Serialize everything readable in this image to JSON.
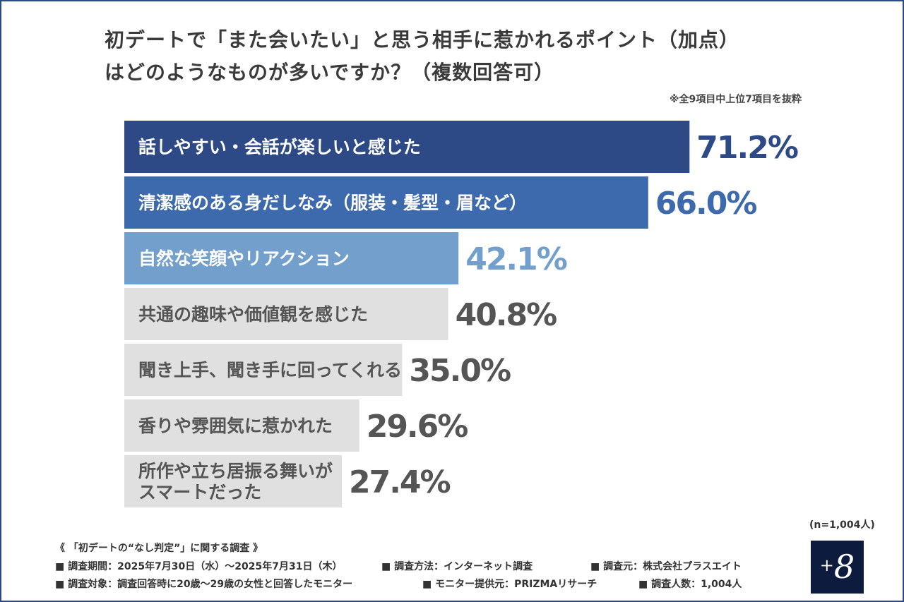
{
  "title": {
    "line1": "初デートで「また会いたい」と思う相手に惹かれるポイント（加点）",
    "line2": "はどのようなものが多いですか？（複数回答可）"
  },
  "note": "※全9項目中上位7項目を抜粋",
  "chart_data": {
    "type": "bar",
    "orientation": "horizontal",
    "categories": [
      "話しやすい・会話が楽しいと感じた",
      "清潔感のある身だしなみ（服装・髪型・眉など）",
      "自然な笑顔やリアクション",
      "共通の趣味や価値観を感じた",
      "聞き上手、聞き手に回ってくれる",
      "香りや雰囲気に惹かれた",
      "所作や立ち居振る舞いがスマートだった"
    ],
    "category_lines": [
      [
        "話しやすい・会話が楽しいと感じた"
      ],
      [
        "清潔感のある身だしなみ（服装・髪型・眉など）"
      ],
      [
        "自然な笑顔やリアクション"
      ],
      [
        "共通の趣味や価値観を感じた"
      ],
      [
        "聞き上手、聞き手に回ってくれる"
      ],
      [
        "香りや雰囲気に惹かれた"
      ],
      [
        "所作や立ち居振る舞いが",
        "スマートだった"
      ]
    ],
    "values": [
      71.2,
      66.0,
      42.1,
      40.8,
      35.0,
      29.6,
      27.4
    ],
    "value_labels": [
      "71.2%",
      "66.0%",
      "42.1%",
      "40.8%",
      "35.0%",
      "29.6%",
      "27.4%"
    ],
    "unit": "%",
    "bar_colors": [
      "#2d4a86",
      "#3d6aac",
      "#729fcb",
      "#e0e0e0",
      "#e0e0e0",
      "#e0e0e0",
      "#e0e0e0"
    ],
    "label_colors": [
      "#ffffff",
      "#ffffff",
      "#ffffff",
      "#555555",
      "#555555",
      "#555555",
      "#555555"
    ],
    "value_colors": [
      "#2d4a86",
      "#3d6aac",
      "#729fcb",
      "#555555",
      "#555555",
      "#555555",
      "#555555"
    ]
  },
  "sample_size": "(n=1,004人)",
  "footer": {
    "survey_name": "《 「初デートの“なし判定”」に関する調査 》",
    "period": "■ 調査期間：2025年7月30日（水）〜2025年7月31日（木）",
    "method": "■ 調査方法：インターネット調査",
    "conductor": "■ 調査元：株式会社プラスエイト",
    "target": "■ 調査対象：調査回答時に20歳〜29歳の女性と回答したモニター",
    "provider": "■ モニター提供元：PRIZMAリサーチ",
    "respondents": "■ 調査人数：1,004人"
  },
  "logo": {
    "plus": "+",
    "eight": "8"
  }
}
